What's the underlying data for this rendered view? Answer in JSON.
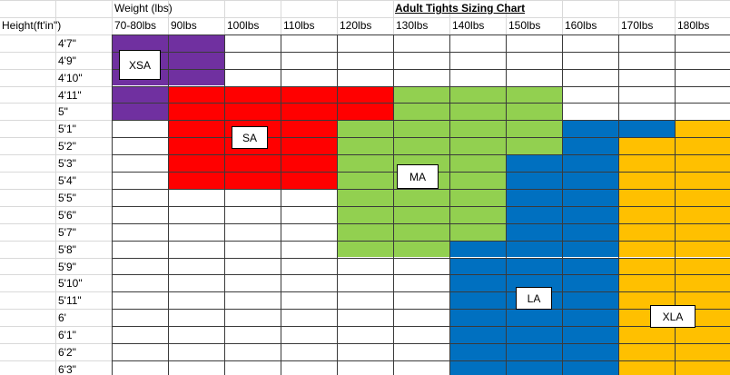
{
  "sheet": {
    "title": "Adult Tights Sizing Chart",
    "weight_header": "Weight (lbs)",
    "height_header": "Height(ft'in\")",
    "weights": [
      "70-80lbs",
      "90lbs",
      "100lbs",
      "110lbs",
      "120lbs",
      "130lbs",
      "140lbs",
      "150lbs",
      "160lbs",
      "170lbs",
      "180lbs"
    ],
    "heights": [
      "4'7\"",
      "4'9\"",
      "4'10\"",
      "4'11\"",
      "5\"",
      "5'1\"",
      "5'2\"",
      "5'3\"",
      "5'4\"",
      "5'5\"",
      "5'6\"",
      "5'7\"",
      "5'8\"",
      "5'9\"",
      "5'10\"",
      "5'11\"",
      "6'",
      "6'1\"",
      "6'2\"",
      "6'3\""
    ]
  },
  "sizes": [
    {
      "label": "XSA",
      "color": "#7030a0",
      "cells": [
        [
          0,
          0
        ],
        [
          0,
          1
        ],
        [
          1,
          0
        ],
        [
          1,
          1
        ],
        [
          2,
          0
        ],
        [
          2,
          1
        ],
        [
          3,
          0
        ],
        [
          4,
          0
        ]
      ]
    },
    {
      "label": "SA",
      "color": "#ff0000",
      "cells": [
        [
          3,
          1
        ],
        [
          3,
          2
        ],
        [
          3,
          3
        ],
        [
          3,
          4
        ],
        [
          4,
          1
        ],
        [
          4,
          2
        ],
        [
          4,
          3
        ],
        [
          4,
          4
        ],
        [
          5,
          1
        ],
        [
          5,
          2
        ],
        [
          5,
          3
        ],
        [
          6,
          1
        ],
        [
          6,
          2
        ],
        [
          6,
          3
        ],
        [
          7,
          1
        ],
        [
          7,
          2
        ],
        [
          7,
          3
        ],
        [
          8,
          1
        ],
        [
          8,
          2
        ],
        [
          8,
          3
        ]
      ]
    },
    {
      "label": "MA",
      "color": "#92d050",
      "cells": [
        [
          3,
          5
        ],
        [
          3,
          6
        ],
        [
          3,
          7
        ],
        [
          4,
          5
        ],
        [
          4,
          6
        ],
        [
          4,
          7
        ],
        [
          5,
          4
        ],
        [
          5,
          5
        ],
        [
          5,
          6
        ],
        [
          5,
          7
        ],
        [
          6,
          4
        ],
        [
          6,
          5
        ],
        [
          6,
          6
        ],
        [
          6,
          7
        ],
        [
          7,
          4
        ],
        [
          7,
          5
        ],
        [
          7,
          6
        ],
        [
          8,
          4
        ],
        [
          8,
          5
        ],
        [
          8,
          6
        ],
        [
          9,
          4
        ],
        [
          9,
          5
        ],
        [
          9,
          6
        ],
        [
          10,
          4
        ],
        [
          10,
          5
        ],
        [
          10,
          6
        ],
        [
          11,
          4
        ],
        [
          11,
          5
        ],
        [
          11,
          6
        ],
        [
          12,
          4
        ],
        [
          12,
          5
        ]
      ]
    },
    {
      "label": "LA",
      "color": "#0070c0",
      "cells": [
        [
          5,
          8
        ],
        [
          5,
          9
        ],
        [
          6,
          8
        ],
        [
          7,
          7
        ],
        [
          7,
          8
        ],
        [
          8,
          7
        ],
        [
          8,
          8
        ],
        [
          9,
          7
        ],
        [
          9,
          8
        ],
        [
          10,
          7
        ],
        [
          10,
          8
        ],
        [
          11,
          7
        ],
        [
          11,
          8
        ],
        [
          12,
          6
        ],
        [
          12,
          7
        ],
        [
          12,
          8
        ],
        [
          13,
          6
        ],
        [
          13,
          7
        ],
        [
          13,
          8
        ],
        [
          14,
          6
        ],
        [
          14,
          7
        ],
        [
          14,
          8
        ],
        [
          15,
          6
        ],
        [
          15,
          7
        ],
        [
          15,
          8
        ],
        [
          16,
          6
        ],
        [
          16,
          7
        ],
        [
          16,
          8
        ],
        [
          17,
          6
        ],
        [
          17,
          7
        ],
        [
          17,
          8
        ],
        [
          18,
          6
        ],
        [
          18,
          7
        ],
        [
          18,
          8
        ],
        [
          19,
          6
        ],
        [
          19,
          7
        ],
        [
          19,
          8
        ]
      ]
    },
    {
      "label": "XLA",
      "color": "#ffc000",
      "cells": [
        [
          5,
          10
        ],
        [
          6,
          9
        ],
        [
          6,
          10
        ],
        [
          7,
          9
        ],
        [
          7,
          10
        ],
        [
          8,
          9
        ],
        [
          8,
          10
        ],
        [
          9,
          9
        ],
        [
          9,
          10
        ],
        [
          10,
          9
        ],
        [
          10,
          10
        ],
        [
          11,
          9
        ],
        [
          11,
          10
        ],
        [
          12,
          9
        ],
        [
          12,
          10
        ],
        [
          13,
          9
        ],
        [
          13,
          10
        ],
        [
          14,
          9
        ],
        [
          14,
          10
        ],
        [
          15,
          9
        ],
        [
          15,
          10
        ],
        [
          16,
          9
        ],
        [
          16,
          10
        ],
        [
          17,
          9
        ],
        [
          17,
          10
        ],
        [
          18,
          9
        ],
        [
          18,
          10
        ],
        [
          19,
          9
        ],
        [
          19,
          10
        ]
      ]
    }
  ],
  "colors": {
    "grid": "#3a3a3a",
    "sheet_grid": "#d9d9d9"
  }
}
